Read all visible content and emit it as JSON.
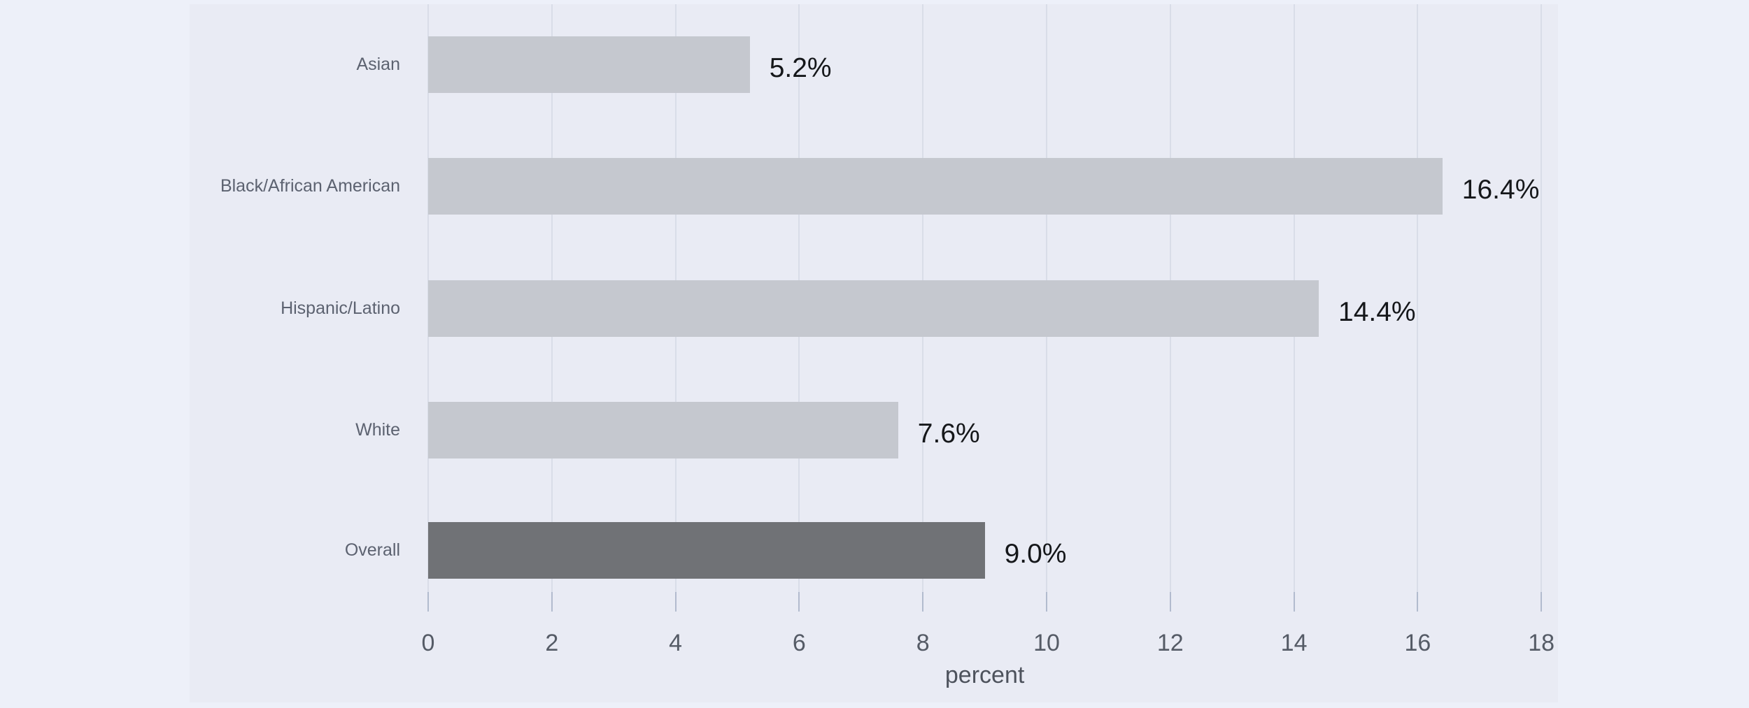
{
  "chart_data": {
    "type": "bar",
    "orientation": "horizontal",
    "categories": [
      "Asian",
      "Black/African American",
      "Hispanic/Latino",
      "White",
      "Overall"
    ],
    "values": [
      5.2,
      16.4,
      14.4,
      7.6,
      9.0
    ],
    "value_labels": [
      "5.2%",
      "16.4%",
      "14.4%",
      "7.6%",
      "9.0%"
    ],
    "title": "",
    "xlabel": "percent",
    "ylabel": "",
    "xlim": [
      0,
      18.3
    ],
    "xticks": [
      0,
      2,
      4,
      6,
      8,
      10,
      12,
      14,
      16,
      18
    ],
    "grid": "vertical",
    "legend": "none",
    "colors": {
      "bar_default": "#c5c8cf",
      "bar_highlight": "#707276",
      "highlight_category": "Overall",
      "plot_background": "#e9ebf4",
      "page_background": "#edf0f9",
      "gridline": "#d9dde8",
      "tick_mark": "#b2bbce",
      "category_label_text": "#5c6270",
      "value_label_text": "#15171a",
      "tick_label_text": "#555b66",
      "axis_title_text": "#4d525c"
    }
  }
}
